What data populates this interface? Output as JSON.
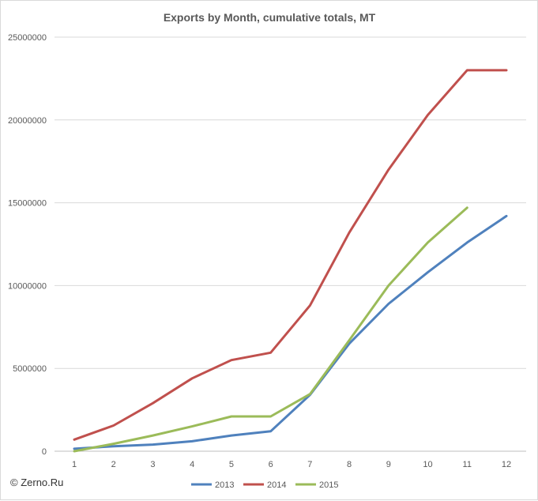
{
  "copyright": "© Zerno.Ru",
  "chart_data": {
    "type": "line",
    "title": "Exports by Month, cumulative totals, MT",
    "xlabel": "",
    "ylabel": "",
    "x": [
      1,
      2,
      3,
      4,
      5,
      6,
      7,
      8,
      9,
      10,
      11,
      12
    ],
    "x_tick_labels": [
      "1",
      "2",
      "3",
      "4",
      "5",
      "6",
      "7",
      "8",
      "9",
      "10",
      "11",
      "12"
    ],
    "ylim": [
      0,
      25000000
    ],
    "y_ticks": [
      0,
      5000000,
      10000000,
      15000000,
      20000000,
      25000000
    ],
    "y_tick_labels": [
      "0",
      "5000000",
      "10000000",
      "15000000",
      "20000000",
      "25000000"
    ],
    "grid": "horizontal",
    "legend_position": "bottom",
    "series": [
      {
        "name": "2013",
        "color": "#4f81bd",
        "values": [
          150000,
          300000,
          400000,
          600000,
          950000,
          1200000,
          3400000,
          6500000,
          8900000,
          10800000,
          12600000,
          14200000
        ]
      },
      {
        "name": "2014",
        "color": "#c0504d",
        "values": [
          700000,
          1550000,
          2900000,
          4400000,
          5500000,
          5950000,
          8800000,
          13200000,
          17000000,
          20300000,
          23000000,
          23000000
        ]
      },
      {
        "name": "2015",
        "color": "#9bbb59",
        "values": [
          0,
          450000,
          950000,
          1500000,
          2100000,
          2100000,
          3450000,
          6700000,
          10000000,
          12600000,
          14700000,
          null
        ]
      }
    ]
  }
}
